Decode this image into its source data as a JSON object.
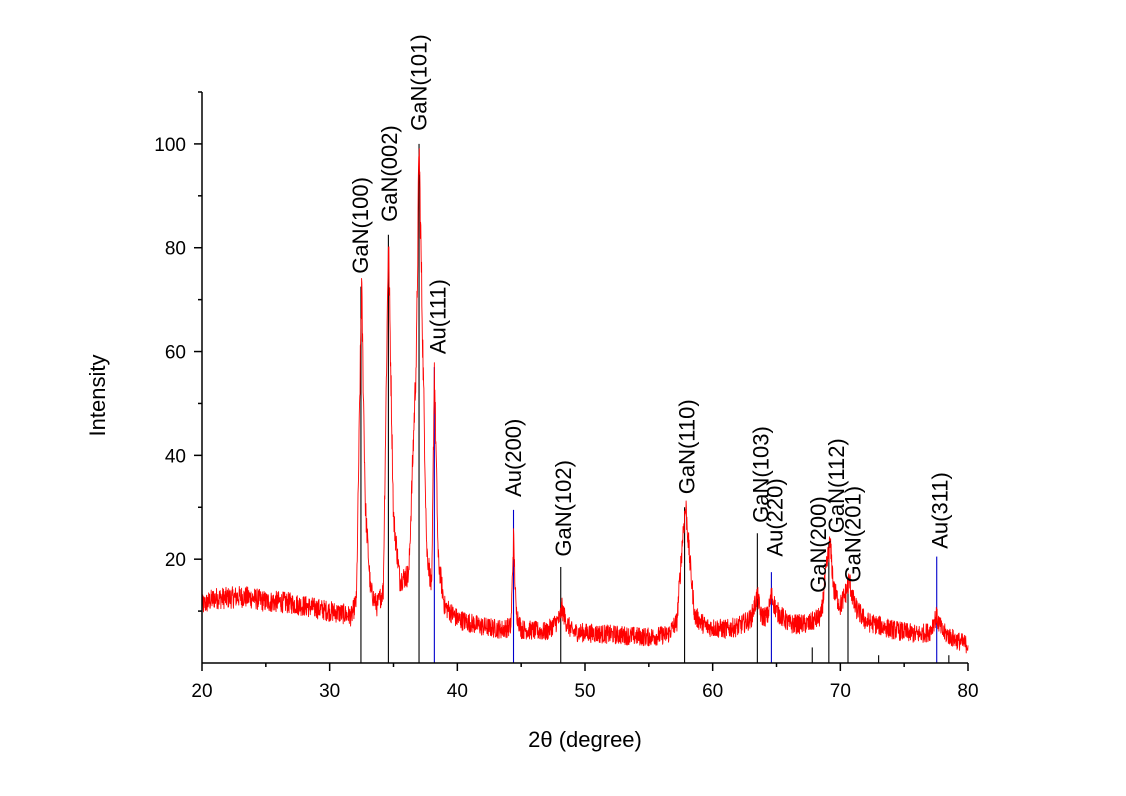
{
  "chart_data": {
    "type": "line",
    "title": "",
    "xlabel": "2θ (degree)",
    "ylabel": "Intensity",
    "xlim": [
      20,
      80
    ],
    "ylim": [
      0,
      110
    ],
    "x_ticks": [
      20,
      30,
      40,
      50,
      60,
      70,
      80
    ],
    "y_ticks": [
      20,
      40,
      60,
      80,
      100
    ],
    "grid": false,
    "colors": {
      "pattern": "#ff0000",
      "gan_ref": "#000000",
      "au_ref": "#0000cc"
    },
    "pattern_profile": [
      [
        20,
        11
      ],
      [
        21,
        12.5
      ],
      [
        22,
        12.5
      ],
      [
        23,
        12.8
      ],
      [
        24,
        12.5
      ],
      [
        25,
        11.8
      ],
      [
        26,
        11.8
      ],
      [
        27,
        11.5
      ],
      [
        28,
        11
      ],
      [
        29,
        10.5
      ],
      [
        30,
        10
      ],
      [
        31,
        9.5
      ],
      [
        31.7,
        9
      ],
      [
        32.1,
        12
      ],
      [
        32.5,
        72.5
      ],
      [
        32.8,
        30
      ],
      [
        33.2,
        14
      ],
      [
        33.7,
        11
      ],
      [
        34.2,
        14
      ],
      [
        34.6,
        82
      ],
      [
        35,
        28
      ],
      [
        35.5,
        16
      ],
      [
        36.2,
        17
      ],
      [
        36.8,
        60
      ],
      [
        37,
        100
      ],
      [
        37.3,
        60
      ],
      [
        37.6,
        22
      ],
      [
        38,
        14
      ],
      [
        38.2,
        57
      ],
      [
        38.5,
        20
      ],
      [
        39,
        11
      ],
      [
        40,
        8.5
      ],
      [
        42,
        7
      ],
      [
        43.5,
        6.5
      ],
      [
        44.2,
        7
      ],
      [
        44.4,
        24
      ],
      [
        44.6,
        10
      ],
      [
        45,
        6.5
      ],
      [
        47,
        6
      ],
      [
        48,
        8.5
      ],
      [
        48.2,
        10.5
      ],
      [
        48.5,
        8
      ],
      [
        49,
        6
      ],
      [
        52,
        5.5
      ],
      [
        55,
        5
      ],
      [
        56.5,
        5.5
      ],
      [
        57.2,
        8
      ],
      [
        57.7,
        26
      ],
      [
        57.9,
        30
      ],
      [
        58.2,
        20
      ],
      [
        58.6,
        9
      ],
      [
        59.5,
        7
      ],
      [
        61,
        6.5
      ],
      [
        62,
        7
      ],
      [
        63,
        8.5
      ],
      [
        63.5,
        13
      ],
      [
        63.8,
        9
      ],
      [
        64.3,
        9
      ],
      [
        64.6,
        13
      ],
      [
        65,
        10
      ],
      [
        66,
        7.5
      ],
      [
        67.5,
        7.5
      ],
      [
        68.5,
        9
      ],
      [
        69,
        20
      ],
      [
        69.2,
        23
      ],
      [
        69.5,
        14
      ],
      [
        70,
        11
      ],
      [
        70.5,
        14
      ],
      [
        70.7,
        16
      ],
      [
        71.1,
        11
      ],
      [
        72,
        8
      ],
      [
        74,
        6.5
      ],
      [
        76,
        5.5
      ],
      [
        77,
        6
      ],
      [
        77.5,
        9
      ],
      [
        78,
        6
      ],
      [
        79,
        4.5
      ],
      [
        80,
        3.5
      ]
    ],
    "reference_lines": [
      {
        "series": "GaN",
        "x": 32.45,
        "y": 72.5
      },
      {
        "series": "GaN",
        "x": 34.6,
        "y": 82.5
      },
      {
        "series": "GaN",
        "x": 37.0,
        "y": 100
      },
      {
        "series": "Au",
        "x": 38.2,
        "y": 57
      },
      {
        "series": "Au",
        "x": 44.4,
        "y": 29.5
      },
      {
        "series": "GaN",
        "x": 48.1,
        "y": 18.5
      },
      {
        "series": "GaN",
        "x": 57.8,
        "y": 30
      },
      {
        "series": "GaN",
        "x": 63.5,
        "y": 25
      },
      {
        "series": "Au",
        "x": 64.6,
        "y": 17.5
      },
      {
        "series": "GaN",
        "x": 67.8,
        "y": 3
      },
      {
        "series": "GaN",
        "x": 69.1,
        "y": 23
      },
      {
        "series": "GaN",
        "x": 70.6,
        "y": 15
      },
      {
        "series": "GaN",
        "x": 73.0,
        "y": 1.5
      },
      {
        "series": "Au",
        "x": 77.55,
        "y": 20.5
      },
      {
        "series": "GaN",
        "x": 78.5,
        "y": 1.5
      }
    ],
    "annotations": [
      {
        "text": "GaN(100)",
        "x": 32.4,
        "y": 75
      },
      {
        "text": "GaN(002)",
        "x": 34.7,
        "y": 85
      },
      {
        "text": "GaN(101)",
        "x": 37.0,
        "y": 102.5
      },
      {
        "text": "Au(111)",
        "x": 38.5,
        "y": 59.5
      },
      {
        "text": "Au(200)",
        "x": 44.4,
        "y": 32
      },
      {
        "text": "GaN(102)",
        "x": 48.3,
        "y": 20.5
      },
      {
        "text": "GaN(110)",
        "x": 58.0,
        "y": 32.5
      },
      {
        "text": "GaN(103)",
        "x": 63.8,
        "y": 27
      },
      {
        "text": "Au(220)",
        "x": 64.9,
        "y": 20.5
      },
      {
        "text": "GaN(200)",
        "x": 68.3,
        "y": 13.5
      },
      {
        "text": "GaN(112)",
        "x": 69.7,
        "y": 25
      },
      {
        "text": "GaN(201)",
        "x": 71.0,
        "y": 15.5
      },
      {
        "text": "Au(311)",
        "x": 77.8,
        "y": 22
      }
    ]
  }
}
